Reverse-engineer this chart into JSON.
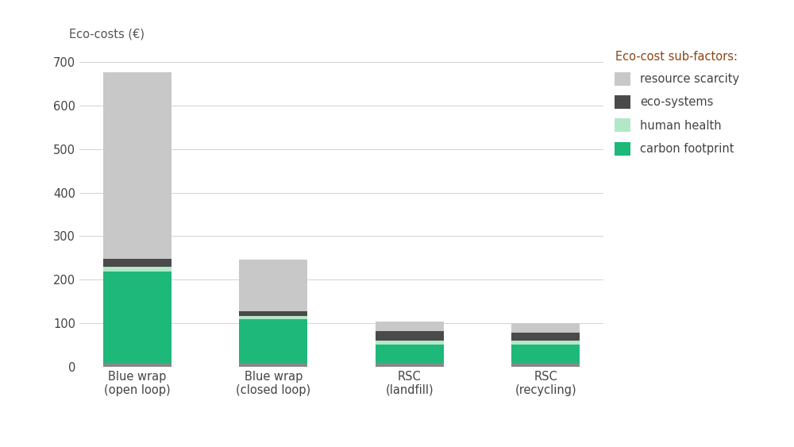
{
  "categories": [
    "Blue wrap\n(open loop)",
    "Blue wrap\n(closed loop)",
    "RSC\n(landfill)",
    "RSC\n(recycling)"
  ],
  "carbon_footprint": [
    210,
    100,
    43,
    43
  ],
  "human_health": [
    12,
    8,
    8,
    8
  ],
  "eco_systems": [
    18,
    12,
    22,
    18
  ],
  "resource_scarcity": [
    428,
    118,
    22,
    22
  ],
  "baseline": [
    8,
    8,
    8,
    8
  ],
  "colors": {
    "carbon_footprint": "#1db87a",
    "human_health": "#b2e8c8",
    "eco_systems": "#4a4a4a",
    "resource_scarcity": "#c8c8c8",
    "baseline": "#888888"
  },
  "ylabel": "Eco-costs (€)",
  "ylim": [
    0,
    740
  ],
  "yticks": [
    0,
    100,
    200,
    300,
    400,
    500,
    600,
    700
  ],
  "legend_title": "Eco-cost sub-factors:",
  "legend_labels": [
    "resource scarcity",
    "eco-systems",
    "human health",
    "carbon footprint"
  ],
  "background_color": "#ffffff",
  "legend_title_color": "#8b4513",
  "label_color": "#555555",
  "bar_width": 0.5,
  "label_fontsize": 10.5,
  "tick_fontsize": 10.5,
  "legend_fontsize": 10.5
}
